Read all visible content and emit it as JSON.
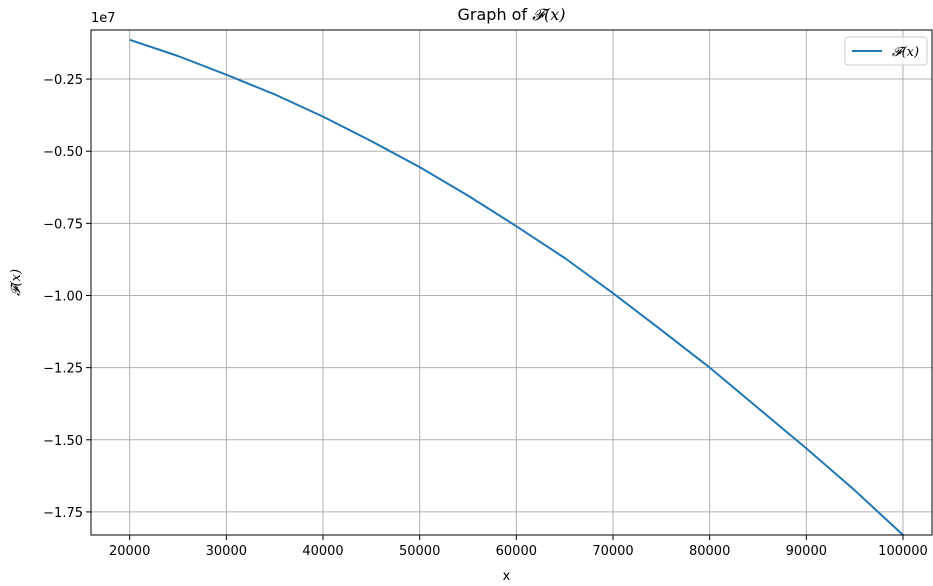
{
  "chart_data": {
    "type": "line",
    "title_prefix": "Graph of ",
    "title_math": "𝓕(x)",
    "xlabel": "x",
    "ylabel": "𝓕(x)",
    "y_offset_label": "1e7",
    "xlim": [
      16000,
      103000
    ],
    "ylim": [
      -18300000.0,
      -800000.0
    ],
    "x_ticks": [
      20000,
      30000,
      40000,
      50000,
      60000,
      70000,
      80000,
      90000,
      100000
    ],
    "x_tick_labels": [
      "20000",
      "30000",
      "40000",
      "50000",
      "60000",
      "70000",
      "80000",
      "90000",
      "100000"
    ],
    "y_ticks": [
      -17500000.0,
      -15000000.0,
      -12500000.0,
      -10000000.0,
      -7500000.0,
      -5000000.0,
      -2500000.0
    ],
    "y_tick_labels": [
      "−1.75",
      "−1.50",
      "−1.25",
      "−1.00",
      "−0.75",
      "−0.50",
      "−0.25"
    ],
    "grid": true,
    "legend_position": "top-right",
    "series": [
      {
        "name": "𝓕(x)",
        "color": "#1f77b4",
        "x": [
          20000,
          25000,
          30000,
          35000,
          40000,
          45000,
          50000,
          55000,
          60000,
          65000,
          70000,
          75000,
          80000,
          85000,
          90000,
          95000,
          100000
        ],
        "y": [
          -1140000,
          -1700000,
          -2350000,
          -3030000,
          -3800000,
          -4650000,
          -5550000,
          -6540000,
          -7600000,
          -8700000,
          -9920000,
          -11200000,
          -12500000,
          -13900000,
          -15300000,
          -16750000,
          -18300000
        ]
      }
    ]
  }
}
